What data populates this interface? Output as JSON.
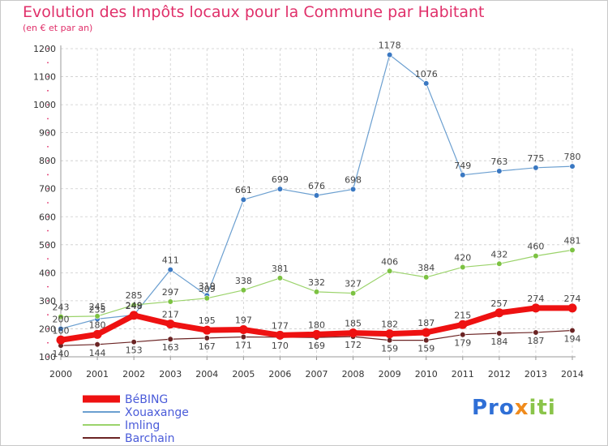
{
  "header": {
    "title": "Evolution des Impôts locaux pour la Commune par Habitant",
    "subtitle": "(en € et par an)"
  },
  "brand": {
    "part1": "Pro",
    "part2": "x",
    "part3": "iti"
  },
  "colors": {
    "accent": "#e0306a",
    "grid": "#cccccc",
    "axis": "#999999",
    "tick_text": "#333333",
    "legend_text": "#4a5bd9"
  },
  "chart_data": {
    "type": "line",
    "title": "Evolution des Impôts locaux pour la Commune par Habitant",
    "subtitle": "(en € et par an)",
    "xlabel": "",
    "ylabel": "",
    "x": [
      2000,
      2001,
      2002,
      2003,
      2004,
      2005,
      2006,
      2007,
      2008,
      2009,
      2010,
      2011,
      2012,
      2013,
      2014
    ],
    "ylim": [
      100,
      1200
    ],
    "yticks": [
      100,
      200,
      300,
      400,
      500,
      600,
      700,
      800,
      900,
      1000,
      1100,
      1200
    ],
    "grid": true,
    "legend_position": "bottom-left",
    "series": [
      {
        "name": "BéBING",
        "color": "#ee1111",
        "marker": "#ee1111",
        "width": 7,
        "label_position": "above",
        "values": [
          160,
          180,
          248,
          217,
          195,
          197,
          177,
          180,
          185,
          182,
          187,
          215,
          257,
          274,
          274
        ]
      },
      {
        "name": "Xouaxange",
        "color": "#6b9fd0",
        "marker": "#3a78c2",
        "width": 1.2,
        "label_position": "above",
        "values": [
          200,
          235,
          249,
          411,
          319,
          661,
          699,
          676,
          698,
          1178,
          1076,
          749,
          763,
          775,
          780
        ]
      },
      {
        "name": "Imling",
        "color": "#9bd36b",
        "marker": "#7cc242",
        "width": 1.2,
        "label_position": "above",
        "values": [
          243,
          245,
          285,
          297,
          309,
          338,
          381,
          332,
          327,
          406,
          384,
          420,
          432,
          460,
          481
        ]
      },
      {
        "name": "Barchain",
        "color": "#6b2424",
        "marker": "#6b2424",
        "width": 1.2,
        "label_position": "below",
        "values": [
          140,
          144,
          153,
          163,
          167,
          171,
          170,
          169,
          172,
          159,
          159,
          179,
          184,
          187,
          194
        ]
      }
    ]
  }
}
